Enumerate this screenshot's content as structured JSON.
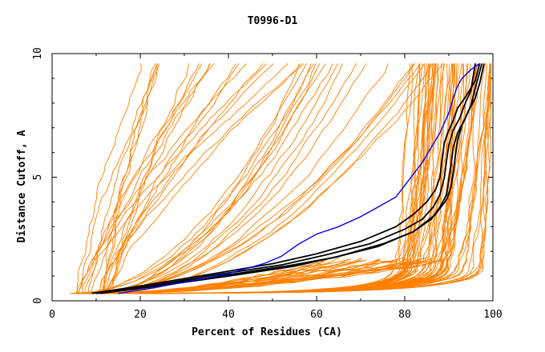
{
  "chart_data": {
    "type": "line",
    "title": "T0996-D1",
    "xlabel": "Percent of Residues (CA)",
    "ylabel": "Distance Cutoff, A",
    "xlim": [
      0,
      100
    ],
    "ylim": [
      0,
      10
    ],
    "x_ticks": [
      "0",
      "20",
      "40",
      "60",
      "80",
      "100"
    ],
    "y_ticks": [
      "0",
      "5",
      "10"
    ],
    "grid": false,
    "series_colors": {
      "background": "#ff8000",
      "highlight": "#0000ff",
      "top_models": "#000000"
    },
    "background_curve_count": 100,
    "highlight_series": {
      "x": [
        15,
        22,
        30,
        40,
        48,
        52,
        56,
        60,
        65,
        70,
        74,
        78,
        81,
        84,
        86,
        88,
        89,
        90,
        91,
        92,
        93,
        95,
        97
      ],
      "y": [
        0.3,
        0.5,
        0.75,
        1.1,
        1.5,
        1.8,
        2.3,
        2.7,
        3.0,
        3.4,
        3.8,
        4.2,
        4.9,
        5.6,
        6.2,
        6.8,
        7.2,
        7.6,
        8.2,
        8.7,
        9.0,
        9.35,
        9.6
      ]
    },
    "top_model_series": [
      {
        "x": [
          9,
          20,
          35,
          50,
          60,
          70,
          78,
          82,
          85,
          87,
          88,
          88.5,
          89,
          90,
          91,
          92,
          94,
          96,
          97
        ],
        "y": [
          0.3,
          0.6,
          1.05,
          1.5,
          1.9,
          2.4,
          3.0,
          3.5,
          4.0,
          4.5,
          5.0,
          5.8,
          6.4,
          6.9,
          7.3,
          7.8,
          8.3,
          8.9,
          9.6
        ]
      },
      {
        "x": [
          10,
          22,
          37,
          52,
          62,
          72,
          80,
          84,
          86.5,
          88,
          89,
          89.5,
          90,
          91,
          92.5,
          93.5,
          95,
          96
        ],
        "y": [
          0.3,
          0.6,
          1.05,
          1.45,
          1.85,
          2.3,
          2.9,
          3.3,
          3.8,
          4.3,
          5.0,
          5.7,
          6.3,
          6.9,
          7.4,
          7.9,
          8.5,
          9.6
        ]
      },
      {
        "x": [
          11,
          24,
          40,
          55,
          65,
          75,
          82,
          86,
          88,
          89.5,
          90,
          90.5,
          91,
          92,
          93.5,
          95,
          96,
          97.5
        ],
        "y": [
          0.3,
          0.6,
          1.0,
          1.4,
          1.8,
          2.3,
          2.8,
          3.3,
          3.8,
          4.3,
          4.9,
          5.5,
          6.2,
          6.8,
          7.3,
          7.9,
          8.6,
          9.6
        ]
      },
      {
        "x": [
          10,
          23,
          38,
          53,
          64,
          74,
          82,
          87,
          89.5,
          90.5,
          91,
          91.5,
          92,
          93,
          94.5,
          96,
          97,
          98
        ],
        "y": [
          0.3,
          0.6,
          1.0,
          1.4,
          1.75,
          2.2,
          2.8,
          3.5,
          4.1,
          4.6,
          5.2,
          5.9,
          6.5,
          7.1,
          7.7,
          8.2,
          8.8,
          9.6
        ]
      }
    ]
  }
}
